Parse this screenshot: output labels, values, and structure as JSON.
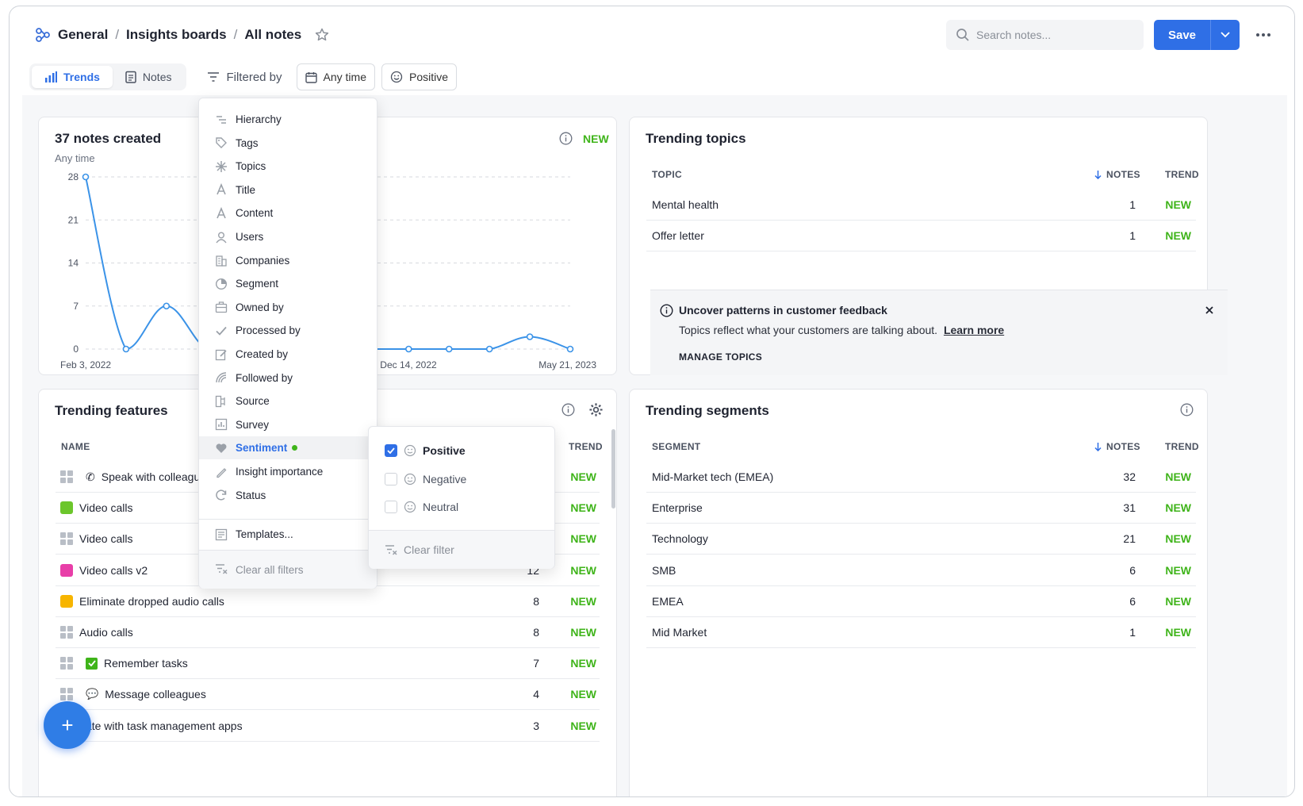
{
  "breadcrumb": {
    "root": "General",
    "middle": "Insights boards",
    "current": "All notes"
  },
  "search": {
    "placeholder": "Search notes..."
  },
  "toolbar": {
    "save_label": "Save"
  },
  "tabs": [
    {
      "label": "Trends"
    },
    {
      "label": "Notes"
    }
  ],
  "filters": {
    "filtered_by": "Filtered by",
    "time_chip": "Any time",
    "sentiment_chip": "Positive"
  },
  "notes_chart": {
    "title": "37 notes created",
    "subtitle": "Any time",
    "badge": "NEW",
    "x_labels": [
      "Feb 3, 2022",
      "Dec 14, 2022",
      "May 21, 2023"
    ]
  },
  "chart_data": {
    "type": "line",
    "title": "37 notes created",
    "subtitle": "Any time",
    "ylim": [
      0,
      28
    ],
    "yticks": [
      0,
      7,
      14,
      21,
      28
    ],
    "x_tick_labels": [
      "Feb 3, 2022",
      "Dec 14, 2022",
      "May 21, 2023"
    ],
    "x": [
      0,
      1,
      2,
      3,
      4,
      5,
      6,
      7,
      8,
      9,
      10,
      11,
      12
    ],
    "values": [
      28,
      0,
      7,
      0,
      0,
      0,
      0,
      0,
      0,
      0,
      0,
      2,
      0
    ],
    "color": "#3b93e8",
    "grid": true
  },
  "trending_topics": {
    "title": "Trending topics",
    "columns": {
      "topic": "TOPIC",
      "notes": "NOTES",
      "trend": "TREND"
    },
    "rows": [
      {
        "name": "Mental health",
        "notes": "1",
        "trend": "NEW"
      },
      {
        "name": "Offer letter",
        "notes": "1",
        "trend": "NEW"
      }
    ]
  },
  "callout": {
    "title": "Uncover patterns in customer feedback",
    "body": "Topics reflect what your customers are talking about.",
    "link": "Learn more",
    "action": "MANAGE TOPICS"
  },
  "trending_features": {
    "title": "Trending features",
    "columns": {
      "name": "NAME",
      "trend": "TREND"
    },
    "rows": [
      {
        "name": "Speak with colleagu",
        "notes": "",
        "trend": "NEW",
        "icon": "phone"
      },
      {
        "name": "Video calls",
        "notes": "",
        "trend": "NEW",
        "icon": "green-square"
      },
      {
        "name": "Video calls",
        "notes": "",
        "trend": "NEW",
        "icon": "grid"
      },
      {
        "name": "Video calls v2",
        "notes": "12",
        "trend": "NEW",
        "icon": "pink-square"
      },
      {
        "name": "Eliminate dropped audio calls",
        "notes": "8",
        "trend": "NEW",
        "icon": "yellow-square"
      },
      {
        "name": "Audio calls",
        "notes": "8",
        "trend": "NEW",
        "icon": "grid"
      },
      {
        "name": "Remember tasks",
        "notes": "7",
        "trend": "NEW",
        "icon": "check"
      },
      {
        "name": "Message colleagues",
        "notes": "4",
        "trend": "NEW",
        "icon": "speech"
      },
      {
        "name": "ntegrate with task management apps",
        "notes": "3",
        "trend": "NEW",
        "icon": "none"
      }
    ]
  },
  "trending_segments": {
    "title": "Trending segments",
    "columns": {
      "segment": "SEGMENT",
      "notes": "NOTES",
      "trend": "TREND"
    },
    "rows": [
      {
        "name": "Mid-Market tech (EMEA)",
        "notes": "32",
        "trend": "NEW"
      },
      {
        "name": "Enterprise",
        "notes": "31",
        "trend": "NEW"
      },
      {
        "name": "Technology",
        "notes": "21",
        "trend": "NEW"
      },
      {
        "name": "SMB",
        "notes": "6",
        "trend": "NEW"
      },
      {
        "name": "EMEA",
        "notes": "6",
        "trend": "NEW"
      },
      {
        "name": "Mid Market",
        "notes": "1",
        "trend": "NEW"
      }
    ]
  },
  "filter_menu": {
    "items": [
      {
        "label": "Hierarchy",
        "icon": "hierarchy-icon"
      },
      {
        "label": "Tags",
        "icon": "tag-icon"
      },
      {
        "label": "Topics",
        "icon": "topics-icon"
      },
      {
        "label": "Title",
        "icon": "text-icon"
      },
      {
        "label": "Content",
        "icon": "text-icon"
      },
      {
        "label": "Users",
        "icon": "user-icon"
      },
      {
        "label": "Companies",
        "icon": "building-icon"
      },
      {
        "label": "Segment",
        "icon": "pie-icon"
      },
      {
        "label": "Owned by",
        "icon": "briefcase-icon"
      },
      {
        "label": "Processed by",
        "icon": "check-icon"
      },
      {
        "label": "Created by",
        "icon": "edit-icon"
      },
      {
        "label": "Followed by",
        "icon": "signal-icon"
      },
      {
        "label": "Source",
        "icon": "source-icon"
      },
      {
        "label": "Survey",
        "icon": "survey-icon"
      },
      {
        "label": "Sentiment",
        "icon": "heart-icon"
      },
      {
        "label": "Insight importance",
        "icon": "pen-icon"
      },
      {
        "label": "Status",
        "icon": "refresh-icon"
      }
    ],
    "templates": "Templates...",
    "clear_all": "Clear all filters"
  },
  "sentiment_menu": {
    "options": [
      {
        "label": "Positive",
        "checked": true
      },
      {
        "label": "Negative",
        "checked": false
      },
      {
        "label": "Neutral",
        "checked": false
      }
    ],
    "clear": "Clear filter"
  },
  "fab": {
    "label": "+"
  },
  "colors": {
    "accent": "#2f6fe6",
    "new": "#3fb41a",
    "line": "#3b93e8"
  }
}
